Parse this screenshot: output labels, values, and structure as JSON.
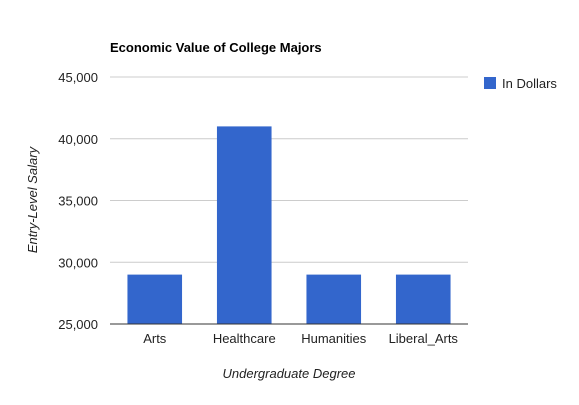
{
  "chart_data": {
    "type": "bar",
    "title": "Economic Value of College Majors",
    "xlabel": "Undergraduate Degree",
    "ylabel": "Entry-Level Salary",
    "categories": [
      "Arts",
      "Healthcare",
      "Humanities",
      "Liberal_Arts"
    ],
    "series": [
      {
        "name": "In Dollars",
        "values": [
          29000,
          41000,
          29000,
          29000
        ],
        "color": "#3366cc"
      }
    ],
    "ylim": [
      25000,
      45000
    ],
    "yticks": [
      25000,
      30000,
      35000,
      40000,
      45000
    ],
    "ytick_labels": [
      "25,000",
      "30,000",
      "35,000",
      "40,000",
      "45,000"
    ],
    "grid": true,
    "legend_position": "right"
  }
}
